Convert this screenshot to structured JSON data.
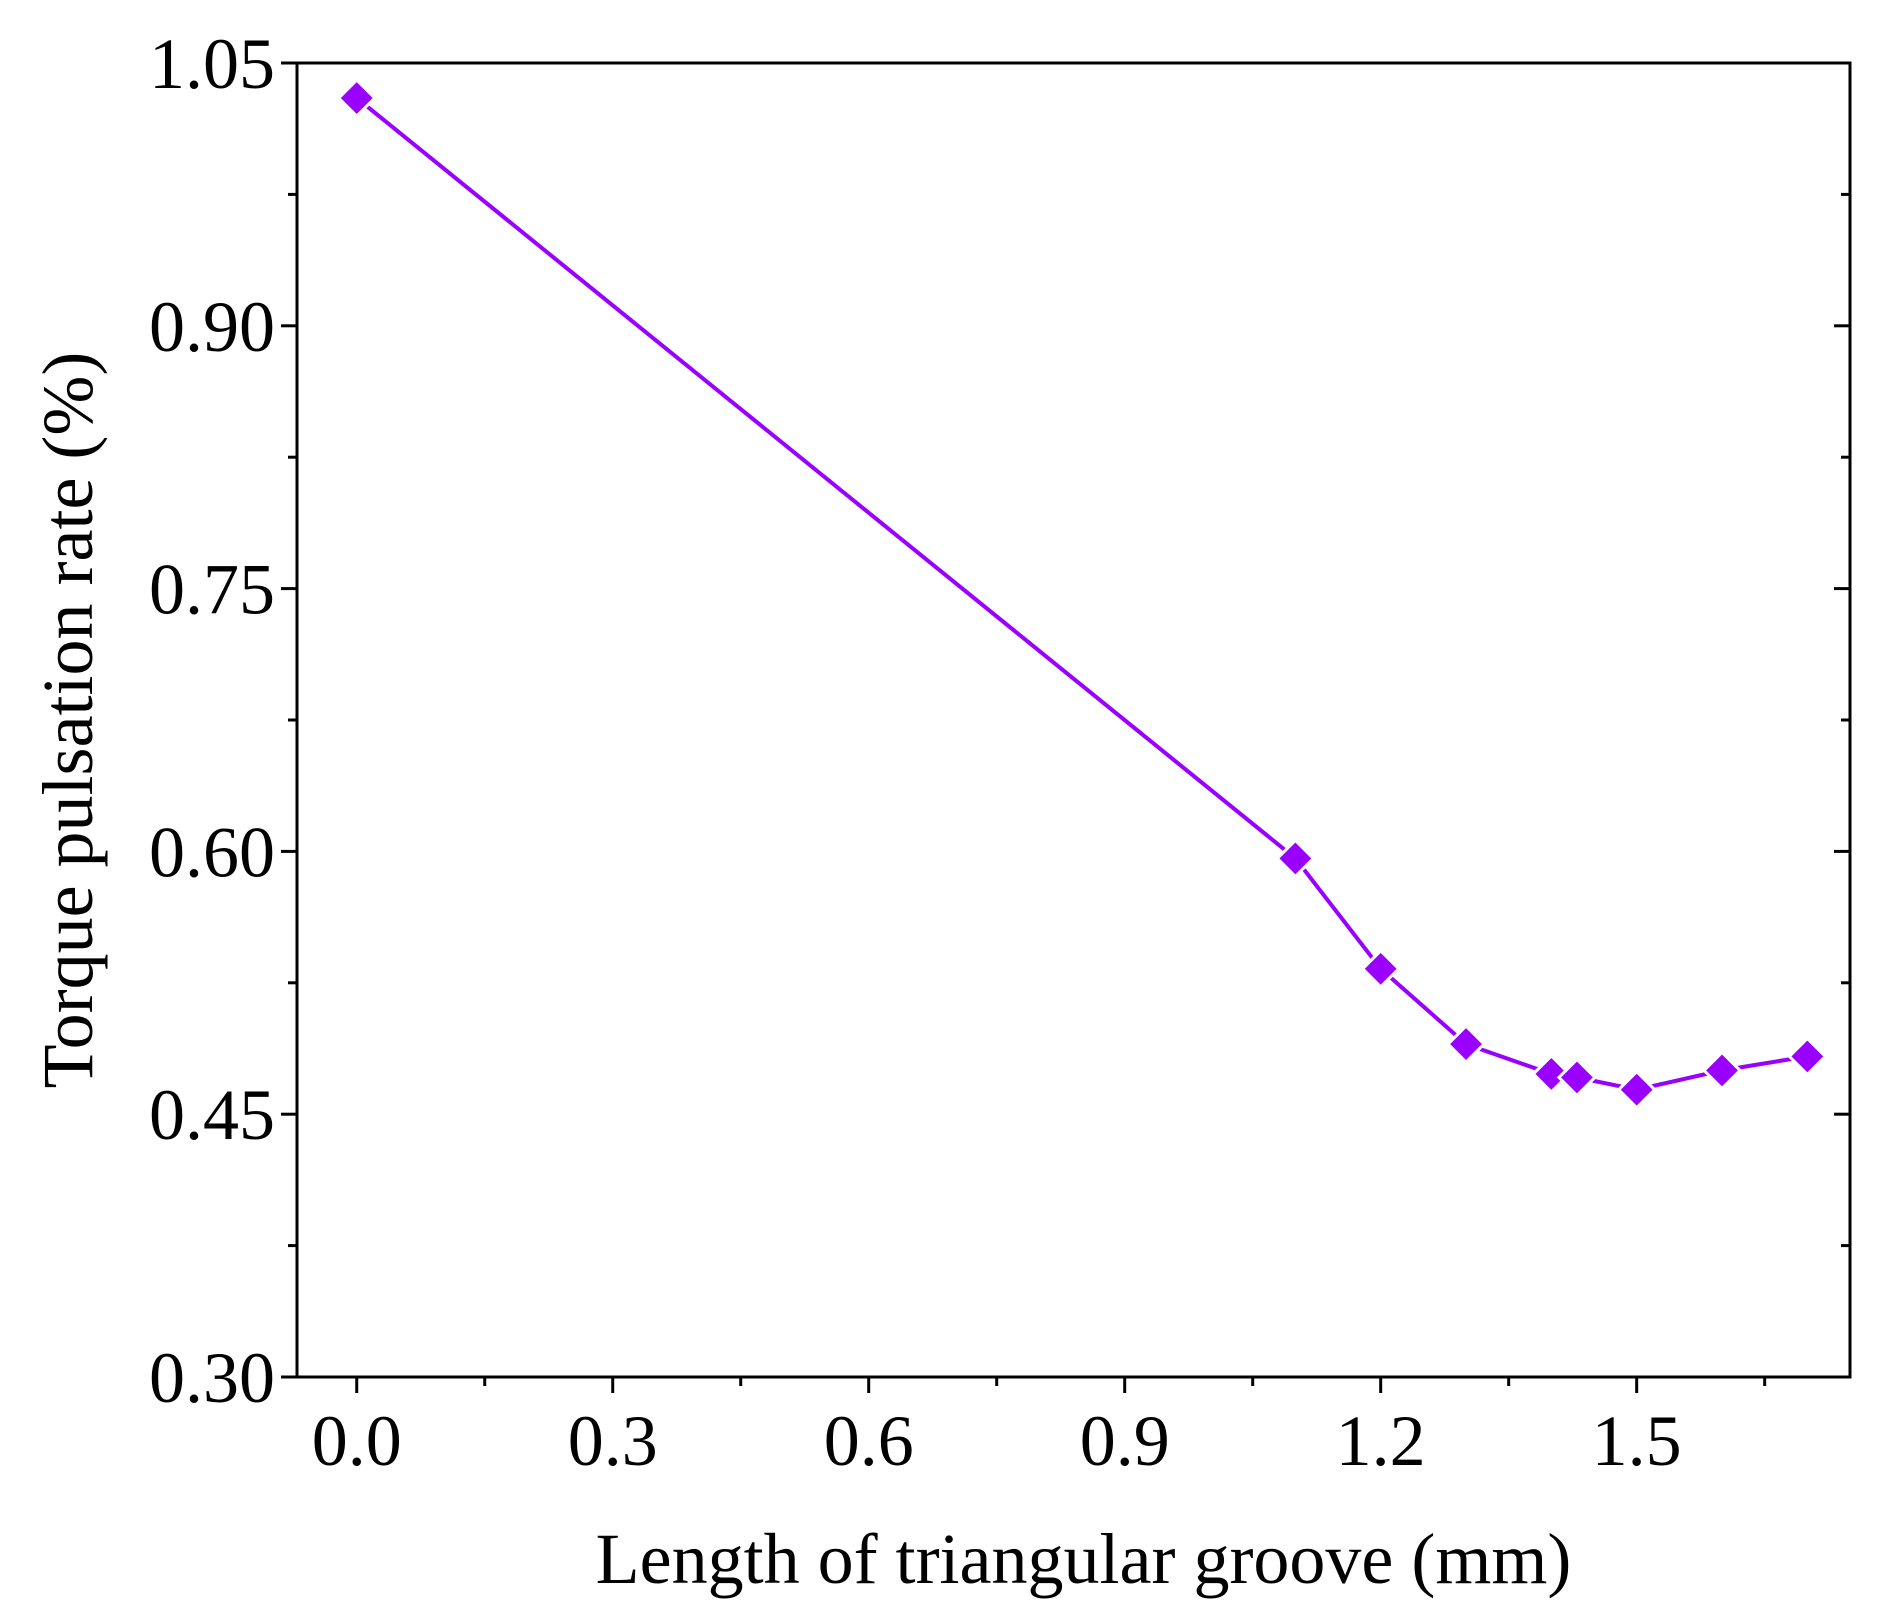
{
  "colors": {
    "series": "#9900FF",
    "axis": "#000000",
    "background": "#FFFFFF"
  },
  "chart_data": {
    "type": "line",
    "title": "",
    "xlabel": "Length of triangular groove (mm)",
    "ylabel": "Torque pulsation rate (%)",
    "xlim": [
      -0.07,
      1.75
    ],
    "ylim": [
      0.3,
      1.05
    ],
    "xticks": [
      0.0,
      0.3,
      0.6,
      0.9,
      1.2,
      1.5
    ],
    "xtick_labels": [
      "0.0",
      "0.3",
      "0.6",
      "0.9",
      "1.2",
      "1.5"
    ],
    "x_minor_ticks": [
      0.15,
      0.45,
      0.75,
      1.05,
      1.35,
      1.65
    ],
    "yticks": [
      0.3,
      0.45,
      0.6,
      0.75,
      0.9,
      1.05
    ],
    "ytick_labels": [
      "0.30",
      "0.45",
      "0.60",
      "0.75",
      "0.90",
      "1.05"
    ],
    "y_minor_ticks": [
      0.375,
      0.525,
      0.675,
      0.825,
      0.975
    ],
    "grid": false,
    "legend": "none",
    "marker": "diamond",
    "series": [
      {
        "name": "Torque pulsation rate",
        "x": [
          0.0,
          1.1,
          1.2,
          1.3,
          1.4,
          1.43,
          1.5,
          1.6,
          1.7
        ],
        "y": [
          1.03,
          0.596,
          0.533,
          0.49,
          0.473,
          0.471,
          0.464,
          0.475,
          0.483
        ]
      }
    ]
  }
}
